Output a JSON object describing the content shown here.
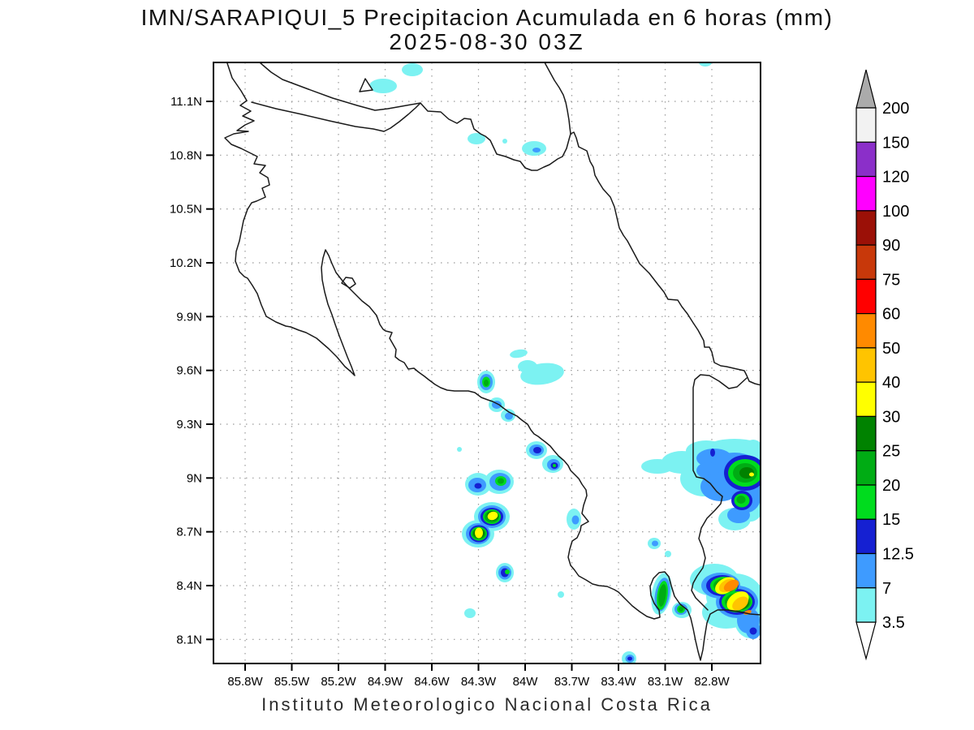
{
  "title": {
    "line1": "IMN/SARAPIQUI_5 Precipitacion Acumulada en 6 horas (mm)",
    "line2": "2025-08-30 03Z"
  },
  "footer": "Instituto Meteorologico Nacional Costa Rica",
  "axes": {
    "lat_ticks": [
      "11.1N",
      "10.8N",
      "10.5N",
      "10.2N",
      "9.9N",
      "9.6N",
      "9.3N",
      "9N",
      "8.7N",
      "8.4N",
      "8.1N"
    ],
    "lon_ticks": [
      "85.8W",
      "85.5W",
      "85.2W",
      "84.9W",
      "84.6W",
      "84.3W",
      "84W",
      "83.7W",
      "83.4W",
      "83.1W",
      "82.8W"
    ]
  },
  "colorbar": {
    "levels_top_to_bottom": [
      "200",
      "150",
      "120",
      "100",
      "90",
      "75",
      "60",
      "50",
      "40",
      "30",
      "25",
      "20",
      "15",
      "12.5",
      "7",
      "3.5"
    ],
    "block_colors_top_to_bottom": [
      "#F2F2F2",
      "#8B2FC9",
      "#FF00FF",
      "#9B1007",
      "#C8380A",
      "#FF0000",
      "#FF8A00",
      "#FFC400",
      "#FFFF00",
      "#008200",
      "#00AC14",
      "#00DC1E",
      "#1520D2",
      "#3E9BFF",
      "#7CF2F2"
    ],
    "over_arrow_color": "#ABABAB",
    "under_arrow_color": "#FFFFFF"
  },
  "chart_data": {
    "type": "heatmap",
    "title": "IMN/SARAPIQUI_5 Precipitacion Acumulada en 6 horas (mm)",
    "valid_time": "2025-08-30 03Z",
    "lat_range": [
      "8.1N",
      "11.1N"
    ],
    "lon_range": [
      "85.8W",
      "82.8W"
    ],
    "units": "mm",
    "scale_levels_mm": [
      3.5,
      7,
      12.5,
      15,
      20,
      25,
      30,
      40,
      50,
      60,
      75,
      90,
      100,
      120,
      150,
      200
    ],
    "notable_cells": [
      {
        "approx_lon": "84.3W",
        "approx_lat": "9.55N",
        "max_band_mm": "15-25"
      },
      {
        "approx_lon": "84.2W",
        "approx_lat": "9.0N",
        "max_band_mm": "20-25"
      },
      {
        "approx_lon": "84.2W",
        "approx_lat": "8.8N",
        "max_band_mm": "30-40"
      },
      {
        "approx_lon": "84.1W",
        "approx_lat": "8.45N",
        "max_band_mm": "15-20"
      },
      {
        "approx_lon": "82.6W",
        "approx_lat": "9.0N",
        "max_band_mm": "30-40"
      },
      {
        "approx_lon": "82.7W",
        "approx_lat": "8.4N",
        "max_band_mm": "50-60"
      },
      {
        "approx_lon": "83.1W",
        "approx_lat": "8.35N",
        "max_band_mm": "20-25"
      },
      {
        "approx_lon": "84.5W",
        "approx_lat": "10.85N",
        "max_band_mm": "3.5-7"
      }
    ],
    "legend_position": "right",
    "grid": "dotted"
  }
}
